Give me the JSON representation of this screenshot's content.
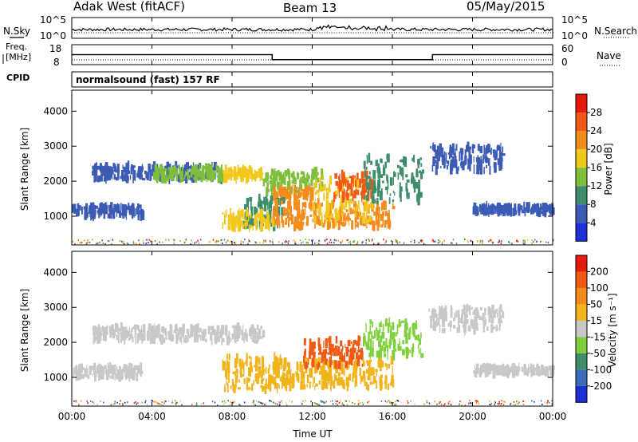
{
  "header": {
    "station": "Adak West (fitACF)",
    "beam": "Beam 13",
    "date": "05/May/2015"
  },
  "noise_panel": {
    "left_label": "N.Sky",
    "right_label": "N.Search",
    "left_ticks": [
      "10^5",
      "10^0"
    ],
    "right_ticks": [
      "10^5",
      "10^0"
    ]
  },
  "freq_panel": {
    "left_label_top": "Freq.",
    "left_label_bottom": "[MHz]",
    "left_ticks": [
      "18",
      "8"
    ],
    "right_label": "Nave",
    "right_ticks": [
      "60",
      "0"
    ]
  },
  "cpid_panel": {
    "label": "CPID",
    "text": "normalsound (fast) 157 RF"
  },
  "power_panel": {
    "ylabel": "Slant Range [km]",
    "colorbar_label": "Power [dB]",
    "colorbar_ticks": [
      "28",
      "24",
      "20",
      "16",
      "12",
      "8",
      "4"
    ],
    "colors": [
      "#1e2fd6",
      "#3c5bb4",
      "#3f8e6b",
      "#7fbf3c",
      "#f2c81c",
      "#f28c1c",
      "#f05a14",
      "#e61a0f"
    ]
  },
  "velocity_panel": {
    "ylabel": "Slant Range [km]",
    "colorbar_label": "Velocity [m s⁻¹]",
    "colorbar_ticks": [
      "200",
      "100",
      "50",
      "15",
      "-15",
      "-50",
      "-100",
      "-200"
    ],
    "colors": [
      "#1e2fd6",
      "#3c6cb8",
      "#3f8e6b",
      "#7fd03c",
      "#c8c8c8",
      "#f2b41c",
      "#f28c1c",
      "#f05a14",
      "#e61a0f"
    ]
  },
  "xaxis": {
    "label": "Time UT",
    "ticks": [
      "00:00",
      "04:00",
      "08:00",
      "12:00",
      "16:00",
      "20:00",
      "00:00"
    ]
  },
  "chart_data": {
    "type": "heatmap",
    "x_range_hours": [
      0,
      24
    ],
    "y_ticks_km": [
      1000,
      2000,
      3000,
      4000
    ],
    "ylim_km": [
      180,
      4600
    ],
    "freq_steps": [
      {
        "from_h": 0,
        "to_h": 10,
        "freq_mhz": 13
      },
      {
        "from_h": 10,
        "to_h": 18,
        "freq_mhz": 10.5
      },
      {
        "from_h": 18,
        "to_h": 24,
        "freq_mhz": 13
      }
    ],
    "power_bands": [
      {
        "t": [
          1.0,
          7.5
        ],
        "r": [
          2050,
          2450
        ],
        "level": 1
      },
      {
        "t": [
          4.0,
          7.5
        ],
        "r": [
          2050,
          2400
        ],
        "level": 3
      },
      {
        "t": [
          7.5,
          9.5
        ],
        "r": [
          2050,
          2350
        ],
        "level": 4
      },
      {
        "t": [
          9.5,
          12.5
        ],
        "r": [
          1700,
          2300
        ],
        "level": 3
      },
      {
        "t": [
          10,
          12
        ],
        "r": [
          1500,
          1800
        ],
        "level": 5
      },
      {
        "t": [
          8.5,
          10.5
        ],
        "r": [
          700,
          1500
        ],
        "level": 2
      },
      {
        "t": [
          7.5,
          10
        ],
        "r": [
          650,
          1100
        ],
        "level": 4
      },
      {
        "t": [
          10,
          16
        ],
        "r": [
          700,
          1400
        ],
        "level": 5
      },
      {
        "t": [
          12,
          15
        ],
        "r": [
          800,
          2100
        ],
        "level": 4
      },
      {
        "t": [
          13,
          15
        ],
        "r": [
          1500,
          2200
        ],
        "level": 6
      },
      {
        "t": [
          14.5,
          17.5
        ],
        "r": [
          1400,
          2700
        ],
        "level": 2
      },
      {
        "t": [
          0,
          3.5
        ],
        "r": [
          1000,
          1300
        ],
        "level": 1
      },
      {
        "t": [
          17.8,
          21.5
        ],
        "r": [
          2300,
          3000
        ],
        "level": 1
      },
      {
        "t": [
          20,
          24
        ],
        "r": [
          1100,
          1300
        ],
        "level": 1
      }
    ],
    "velocity_bands": [
      {
        "t": [
          1.0,
          9.5
        ],
        "r": [
          2050,
          2450
        ],
        "class": "-15..15"
      },
      {
        "t": [
          0,
          3.5
        ],
        "r": [
          1000,
          1300
        ],
        "class": "-15..15"
      },
      {
        "t": [
          7.5,
          10.5
        ],
        "r": [
          650,
          1600
        ],
        "class": "-15..-50"
      },
      {
        "t": [
          10,
          16
        ],
        "r": [
          700,
          1500
        ],
        "class": "-15..-50"
      },
      {
        "t": [
          11.5,
          14.5
        ],
        "r": [
          1300,
          2100
        ],
        "class": "-50..-200"
      },
      {
        "t": [
          14.5,
          17.5
        ],
        "r": [
          1600,
          2600
        ],
        "class": "15..50"
      },
      {
        "t": [
          17.8,
          21.5
        ],
        "r": [
          2300,
          3000
        ],
        "class": "-15..15"
      },
      {
        "t": [
          20,
          24
        ],
        "r": [
          1100,
          1300
        ],
        "class": "-15..15"
      }
    ]
  }
}
